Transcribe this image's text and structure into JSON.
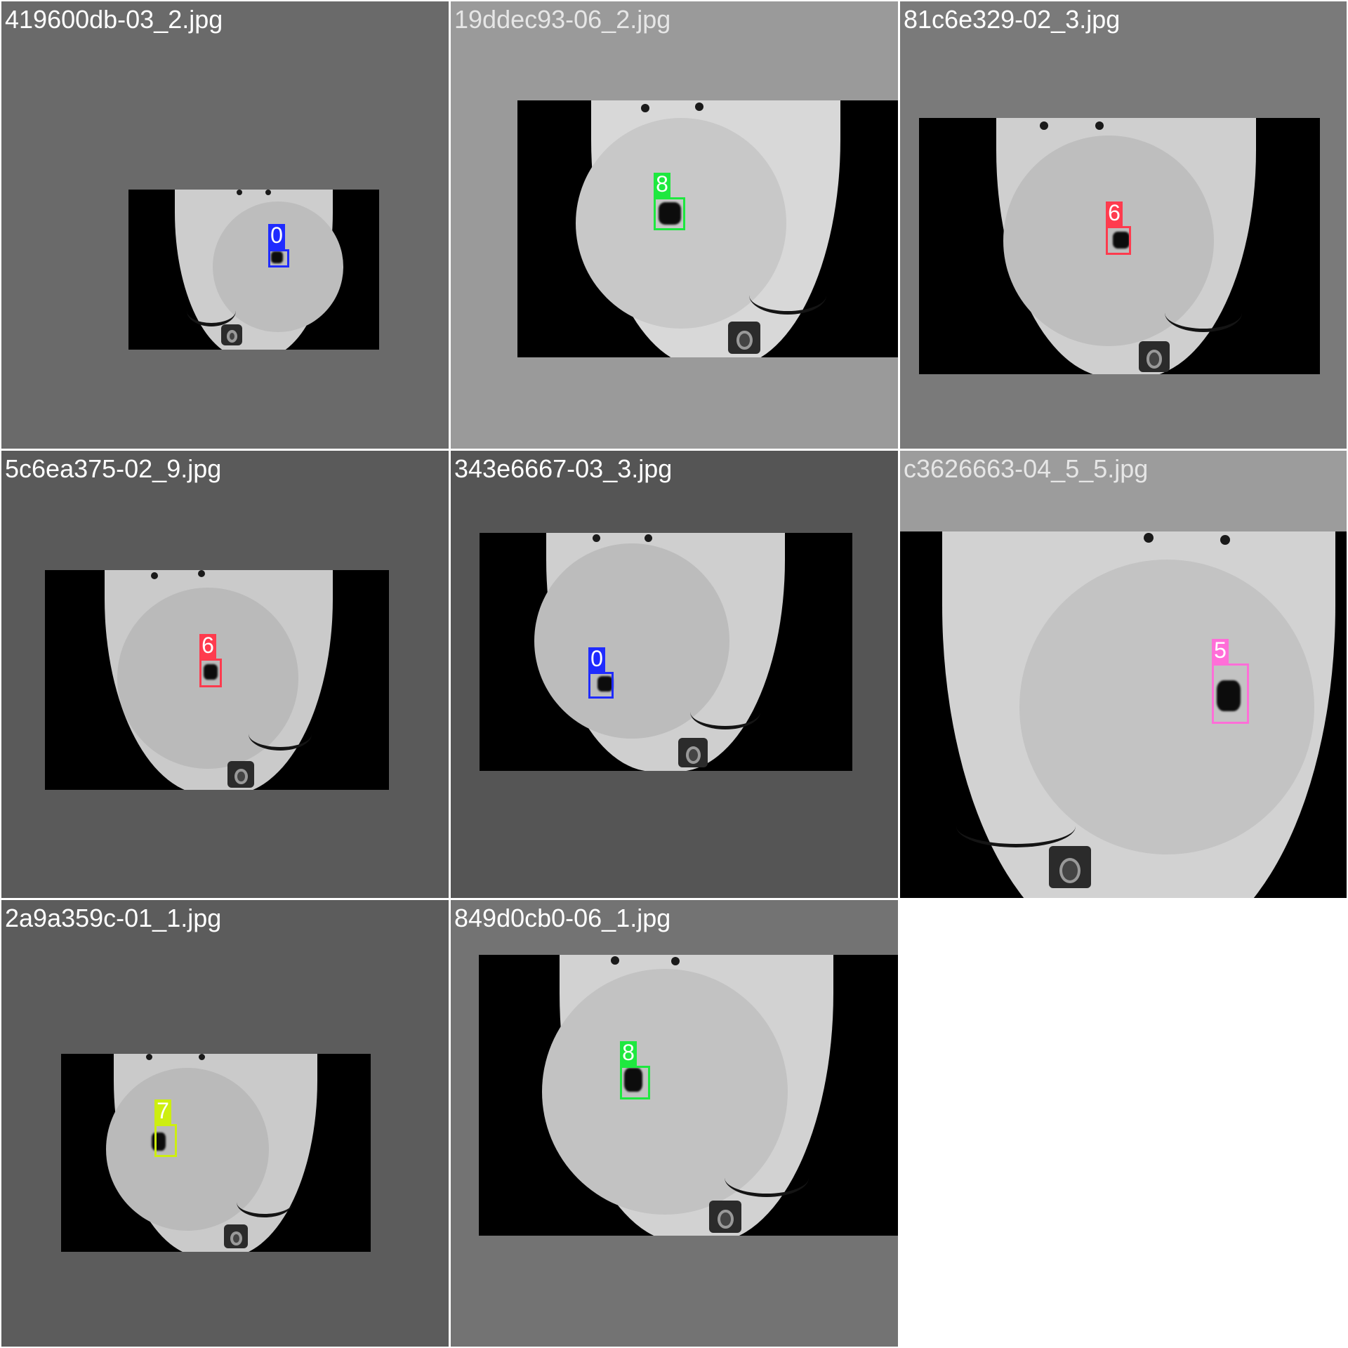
{
  "grid": {
    "background": "#ffffff",
    "divider": "#ffffff"
  },
  "class_colors": {
    "0": "#1f2bff",
    "5": "#ff6ed8",
    "6": "#ff3b4e",
    "7": "#cdee10",
    "8": "#1ee83f"
  },
  "tiles": [
    {
      "filename": "419600db-03_2.jpg",
      "padding_color": "#6a6a6a",
      "label_color": "#ffffff",
      "detections": [
        {
          "class_label": "0"
        }
      ]
    },
    {
      "filename": "19ddec93-06_2.jpg",
      "padding_color": "#9a9a9a",
      "label_color": "#e6e6e6",
      "detections": [
        {
          "class_label": "8"
        }
      ]
    },
    {
      "filename": "81c6e329-02_3.jpg",
      "padding_color": "#7a7a7a",
      "label_color": "#ffffff",
      "detections": [
        {
          "class_label": "6"
        }
      ]
    },
    {
      "filename": "5c6ea375-02_9.jpg",
      "padding_color": "#5a5a5a",
      "label_color": "#ffffff",
      "detections": [
        {
          "class_label": "6"
        }
      ]
    },
    {
      "filename": "343e6667-03_3.jpg",
      "padding_color": "#555555",
      "label_color": "#ffffff",
      "detections": [
        {
          "class_label": "0"
        }
      ]
    },
    {
      "filename": "c3626663-04_5_5.jpg",
      "padding_color": "#9c9c9c",
      "label_color": "#e6e6e6",
      "detections": [
        {
          "class_label": "5"
        }
      ]
    },
    {
      "filename": "2a9a359c-01_1.jpg",
      "padding_color": "#5c5c5c",
      "label_color": "#ffffff",
      "detections": [
        {
          "class_label": "7"
        }
      ]
    },
    {
      "filename": "849d0cb0-06_1.jpg",
      "padding_color": "#737373",
      "label_color": "#ffffff",
      "detections": [
        {
          "class_label": "8"
        }
      ]
    }
  ]
}
